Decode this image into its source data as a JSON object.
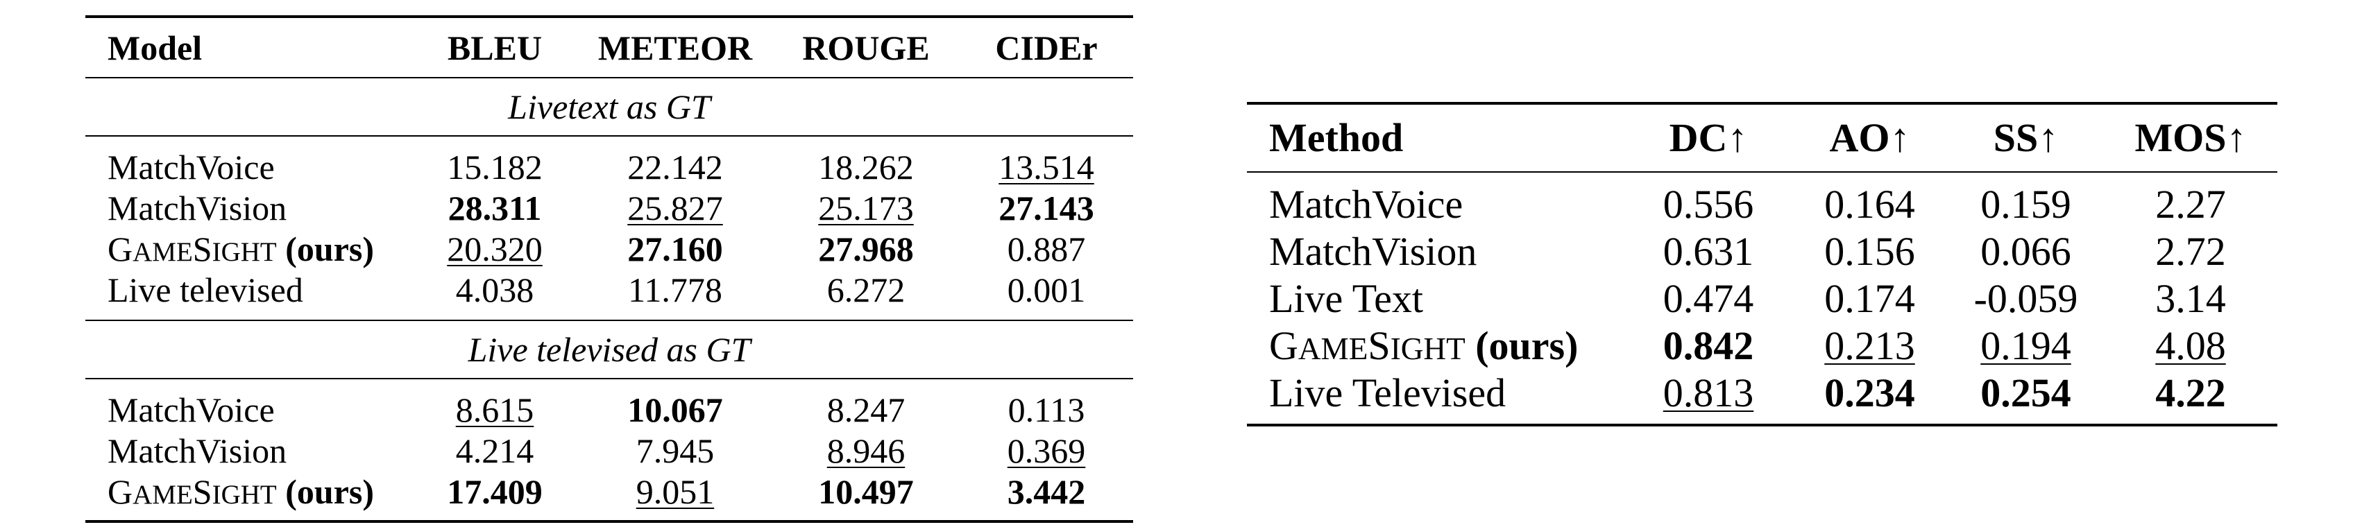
{
  "table_left": {
    "headers": [
      "Model",
      "BLEU",
      "METEOR",
      "ROUGE",
      "CIDEr"
    ],
    "sections": [
      {
        "title": "Livetext as GT",
        "rows": [
          {
            "model": "MatchVoice",
            "ours": false,
            "values": [
              "15.182",
              "22.142",
              "18.262",
              "13.514"
            ],
            "bold": [
              false,
              false,
              false,
              false
            ],
            "underline": [
              false,
              false,
              false,
              true
            ]
          },
          {
            "model": "MatchVision",
            "ours": false,
            "values": [
              "28.311",
              "25.827",
              "25.173",
              "27.143"
            ],
            "bold": [
              true,
              false,
              false,
              true
            ],
            "underline": [
              false,
              true,
              true,
              false
            ]
          },
          {
            "model_sc_1": "G",
            "model_sc_2": "AME",
            "model_sc_3": "S",
            "model_sc_4": "IGHT",
            "model_suffix": "(ours)",
            "ours": true,
            "values": [
              "20.320",
              "27.160",
              "27.968",
              "0.887"
            ],
            "bold": [
              false,
              true,
              true,
              false
            ],
            "underline": [
              true,
              false,
              false,
              false
            ]
          },
          {
            "model": "Live televised",
            "ours": false,
            "values": [
              "4.038",
              "11.778",
              "6.272",
              "0.001"
            ],
            "bold": [
              false,
              false,
              false,
              false
            ],
            "underline": [
              false,
              false,
              false,
              false
            ]
          }
        ]
      },
      {
        "title": "Live televised as GT",
        "rows": [
          {
            "model": "MatchVoice",
            "ours": false,
            "values": [
              "8.615",
              "10.067",
              "8.247",
              "0.113"
            ],
            "bold": [
              false,
              true,
              false,
              false
            ],
            "underline": [
              true,
              false,
              false,
              false
            ]
          },
          {
            "model": "MatchVision",
            "ours": false,
            "values": [
              "4.214",
              "7.945",
              "8.946",
              "0.369"
            ],
            "bold": [
              false,
              false,
              false,
              false
            ],
            "underline": [
              false,
              false,
              true,
              true
            ]
          },
          {
            "model_sc_1": "G",
            "model_sc_2": "AME",
            "model_sc_3": "S",
            "model_sc_4": "IGHT",
            "model_suffix": "(ours)",
            "ours": true,
            "values": [
              "17.409",
              "9.051",
              "10.497",
              "3.442"
            ],
            "bold": [
              true,
              false,
              true,
              true
            ],
            "underline": [
              false,
              true,
              false,
              false
            ]
          }
        ]
      }
    ]
  },
  "table_right": {
    "headers": [
      "Method",
      "DC↑",
      "AO↑",
      "SS↑",
      "MOS↑"
    ],
    "rows": [
      {
        "method": "MatchVoice",
        "ours": false,
        "values": [
          "0.556",
          "0.164",
          "0.159",
          "2.27"
        ],
        "bold": [
          false,
          false,
          false,
          false
        ],
        "underline": [
          false,
          false,
          false,
          false
        ]
      },
      {
        "method": "MatchVision",
        "ours": false,
        "values": [
          "0.631",
          "0.156",
          "0.066",
          "2.72"
        ],
        "bold": [
          false,
          false,
          false,
          false
        ],
        "underline": [
          false,
          false,
          false,
          false
        ]
      },
      {
        "method": "Live Text",
        "ours": false,
        "values": [
          "0.474",
          "0.174",
          "-0.059",
          "3.14"
        ],
        "bold": [
          false,
          false,
          false,
          false
        ],
        "underline": [
          false,
          false,
          false,
          false
        ]
      },
      {
        "method_sc_1": "G",
        "method_sc_2": "AME",
        "method_sc_3": "S",
        "method_sc_4": "IGHT",
        "method_suffix": "(ours)",
        "ours": true,
        "values": [
          "0.842",
          "0.213",
          "0.194",
          "4.08"
        ],
        "bold": [
          true,
          false,
          false,
          false
        ],
        "underline": [
          false,
          true,
          true,
          true
        ]
      },
      {
        "method": "Live Televised",
        "ours": false,
        "values": [
          "0.813",
          "0.234",
          "0.254",
          "4.22"
        ],
        "bold": [
          false,
          true,
          true,
          true
        ],
        "underline": [
          true,
          false,
          false,
          false
        ]
      }
    ]
  }
}
